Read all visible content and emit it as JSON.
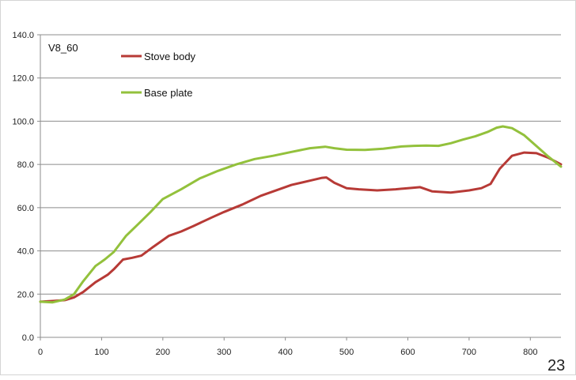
{
  "page_number": "23",
  "chart_data": {
    "type": "line",
    "title": "V8_60",
    "xlabel": "",
    "ylabel": "",
    "xlim": [
      0,
      850
    ],
    "ylim": [
      0,
      140
    ],
    "x_ticks": [
      "0",
      "100",
      "200",
      "300",
      "400",
      "500",
      "600",
      "700",
      "800"
    ],
    "y_ticks": [
      "0.0",
      "20.0",
      "40.0",
      "60.0",
      "80.0",
      "100.0",
      "120.0",
      "140.0"
    ],
    "grid": "horizontal",
    "legend_position": "top-left",
    "series": [
      {
        "name": "Stove body",
        "color": "#b73a36",
        "points": [
          [
            0,
            16.5
          ],
          [
            20,
            16.8
          ],
          [
            40,
            17.2
          ],
          [
            55,
            18.5
          ],
          [
            70,
            21
          ],
          [
            90,
            25.5
          ],
          [
            110,
            29
          ],
          [
            120,
            31.5
          ],
          [
            135,
            36
          ],
          [
            150,
            36.8
          ],
          [
            165,
            37.8
          ],
          [
            185,
            42
          ],
          [
            210,
            47
          ],
          [
            230,
            49
          ],
          [
            250,
            51.5
          ],
          [
            280,
            55.5
          ],
          [
            300,
            58
          ],
          [
            330,
            61.5
          ],
          [
            360,
            65.5
          ],
          [
            380,
            67.5
          ],
          [
            410,
            70.5
          ],
          [
            440,
            72.5
          ],
          [
            460,
            73.8
          ],
          [
            467,
            74
          ],
          [
            480,
            71.5
          ],
          [
            500,
            69
          ],
          [
            520,
            68.5
          ],
          [
            550,
            68
          ],
          [
            580,
            68.5
          ],
          [
            600,
            69
          ],
          [
            620,
            69.5
          ],
          [
            640,
            67.5
          ],
          [
            670,
            67
          ],
          [
            700,
            68
          ],
          [
            720,
            69
          ],
          [
            735,
            71
          ],
          [
            750,
            78
          ],
          [
            770,
            84
          ],
          [
            790,
            85.5
          ],
          [
            810,
            85.2
          ],
          [
            830,
            83
          ],
          [
            850,
            80
          ]
        ]
      },
      {
        "name": "Base plate",
        "color": "#93c13c",
        "points": [
          [
            0,
            16.5
          ],
          [
            20,
            16.2
          ],
          [
            40,
            17.5
          ],
          [
            55,
            20
          ],
          [
            70,
            26
          ],
          [
            90,
            33
          ],
          [
            105,
            36
          ],
          [
            120,
            39.5
          ],
          [
            140,
            47
          ],
          [
            160,
            52.5
          ],
          [
            180,
            58
          ],
          [
            200,
            64
          ],
          [
            230,
            68.5
          ],
          [
            260,
            73.5
          ],
          [
            290,
            77
          ],
          [
            320,
            80
          ],
          [
            350,
            82.5
          ],
          [
            380,
            84
          ],
          [
            410,
            85.8
          ],
          [
            440,
            87.5
          ],
          [
            465,
            88.2
          ],
          [
            480,
            87.5
          ],
          [
            500,
            86.8
          ],
          [
            530,
            86.7
          ],
          [
            560,
            87.3
          ],
          [
            590,
            88.3
          ],
          [
            610,
            88.6
          ],
          [
            630,
            88.7
          ],
          [
            650,
            88.6
          ],
          [
            670,
            89.8
          ],
          [
            690,
            91.5
          ],
          [
            710,
            93
          ],
          [
            730,
            95
          ],
          [
            745,
            97
          ],
          [
            755,
            97.6
          ],
          [
            770,
            96.8
          ],
          [
            790,
            93.5
          ],
          [
            810,
            88.5
          ],
          [
            830,
            83.5
          ],
          [
            850,
            79
          ]
        ]
      }
    ]
  }
}
